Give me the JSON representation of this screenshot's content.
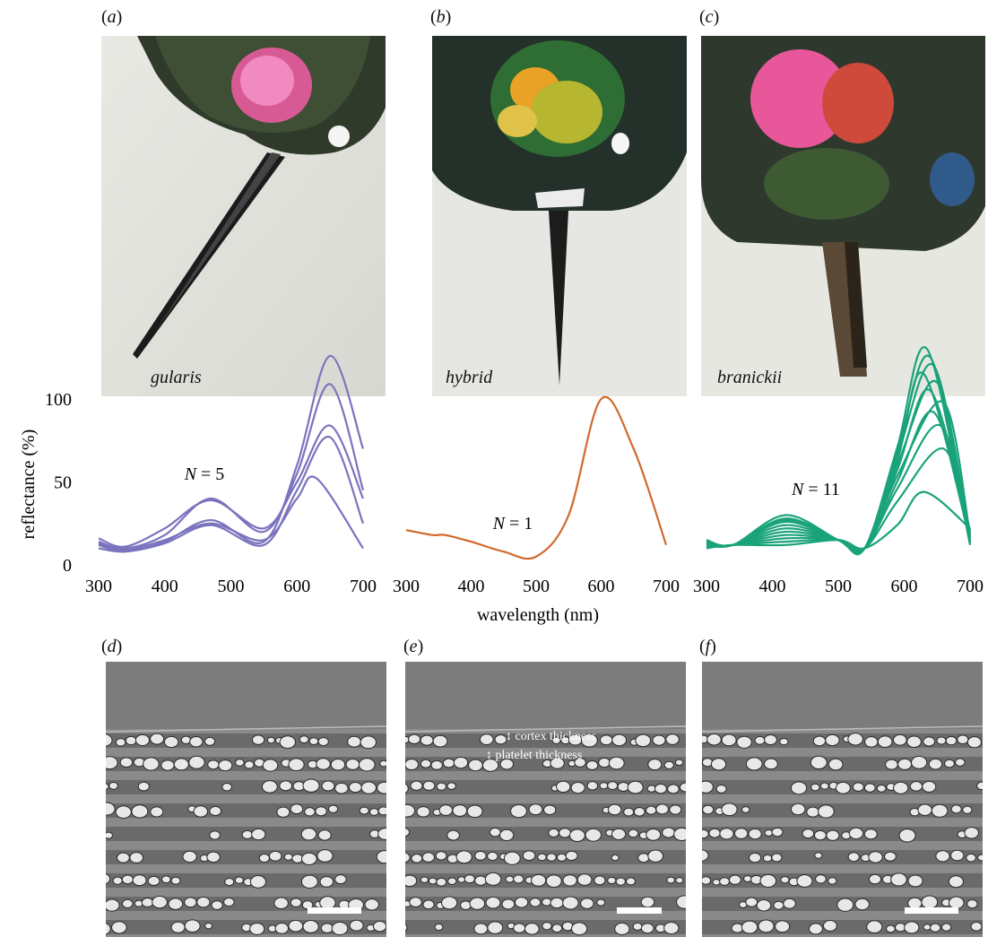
{
  "panels": {
    "a": {
      "letter": "a",
      "species": "gularis"
    },
    "b": {
      "letter": "b",
      "species": "hybrid"
    },
    "c": {
      "letter": "c",
      "species": "branickii"
    },
    "d": {
      "letter": "d"
    },
    "e": {
      "letter": "e",
      "annotations": [
        "cortex thickness",
        "platelet thickness"
      ]
    },
    "f": {
      "letter": "f"
    }
  },
  "chart_data": [
    {
      "type": "line",
      "panel": "a",
      "species": "gularis",
      "color": "#7b73bd",
      "n_label": "N = 5",
      "xlim": [
        300,
        700
      ],
      "ylim": [
        0,
        100
      ],
      "x_ticks": [
        "300",
        "400",
        "500",
        "600",
        "700"
      ],
      "y_ticks": [
        "0",
        "50",
        "100"
      ],
      "ylabel": "reflectance (%)",
      "series": [
        {
          "x": [
            300,
            340,
            400,
            470,
            550,
            600,
            650,
            700
          ],
          "values": [
            12,
            8,
            14,
            27,
            14,
            60,
            126,
            70
          ]
        },
        {
          "x": [
            300,
            340,
            400,
            470,
            550,
            600,
            650,
            700
          ],
          "values": [
            14,
            10,
            18,
            40,
            20,
            55,
            109,
            45
          ]
        },
        {
          "x": [
            300,
            340,
            400,
            470,
            550,
            600,
            650,
            700
          ],
          "values": [
            16,
            11,
            22,
            39,
            22,
            50,
            84,
            40
          ]
        },
        {
          "x": [
            300,
            340,
            400,
            470,
            550,
            600,
            650,
            700
          ],
          "values": [
            10,
            8,
            13,
            24,
            12,
            45,
            77,
            25
          ]
        },
        {
          "x": [
            300,
            340,
            400,
            470,
            550,
            600,
            630,
            700
          ],
          "values": [
            13,
            9,
            15,
            25,
            15,
            40,
            52,
            10
          ]
        }
      ]
    },
    {
      "type": "line",
      "panel": "b",
      "species": "hybrid",
      "color": "#d1692c",
      "n_label": "N = 1",
      "xlim": [
        300,
        700
      ],
      "ylim": [
        0,
        100
      ],
      "x_ticks": [
        "300",
        "400",
        "500",
        "600",
        "700"
      ],
      "series": [
        {
          "x": [
            300,
            340,
            360,
            400,
            450,
            500,
            550,
            600,
            650,
            700
          ],
          "values": [
            21,
            18,
            18,
            14,
            8,
            5,
            30,
            100,
            70,
            12
          ]
        }
      ]
    },
    {
      "type": "line",
      "panel": "c",
      "species": "branickii",
      "color": "#1aa37a",
      "n_label": "N = 11",
      "xlim": [
        300,
        700
      ],
      "ylim": [
        0,
        100
      ],
      "x_ticks": [
        "300",
        "400",
        "500",
        "600",
        "700"
      ],
      "xlabel": "wavelength (nm)",
      "series": [
        {
          "peak": 130,
          "peak_x": 635,
          "mid": 28
        },
        {
          "peak": 125,
          "peak_x": 640,
          "mid": 26
        },
        {
          "peak": 120,
          "peak_x": 645,
          "mid": 30
        },
        {
          "peak": 115,
          "peak_x": 630,
          "mid": 24
        },
        {
          "peak": 110,
          "peak_x": 650,
          "mid": 22
        },
        {
          "peak": 105,
          "peak_x": 640,
          "mid": 20
        },
        {
          "peak": 98,
          "peak_x": 660,
          "mid": 27
        },
        {
          "peak": 92,
          "peak_x": 645,
          "mid": 18
        },
        {
          "peak": 84,
          "peak_x": 655,
          "mid": 16
        },
        {
          "peak": 70,
          "peak_x": 660,
          "mid": 14
        },
        {
          "peak": 44,
          "peak_x": 630,
          "mid": 12
        }
      ]
    }
  ]
}
